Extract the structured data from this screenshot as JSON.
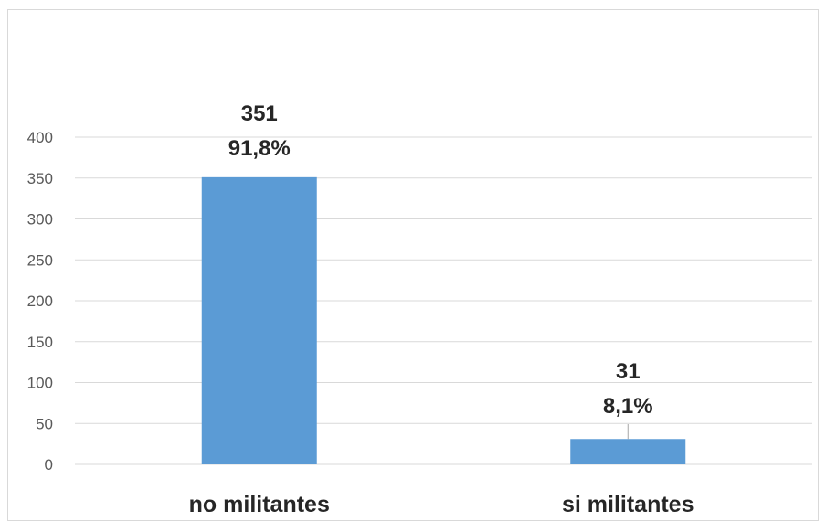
{
  "chart_data": {
    "type": "bar",
    "title": "",
    "xlabel": "",
    "ylabel": "",
    "categories": [
      "no militantes",
      "si militantes"
    ],
    "values": [
      351,
      31
    ],
    "data_labels": [
      {
        "count": "351",
        "percent": "91,8%"
      },
      {
        "count": "31",
        "percent": "8,1%"
      }
    ],
    "ylim": [
      0,
      400
    ],
    "yticks": [
      0,
      50,
      100,
      150,
      200,
      250,
      300,
      350,
      400
    ],
    "grid": true,
    "legend": "none",
    "bar_color": "#5b9bd5"
  }
}
